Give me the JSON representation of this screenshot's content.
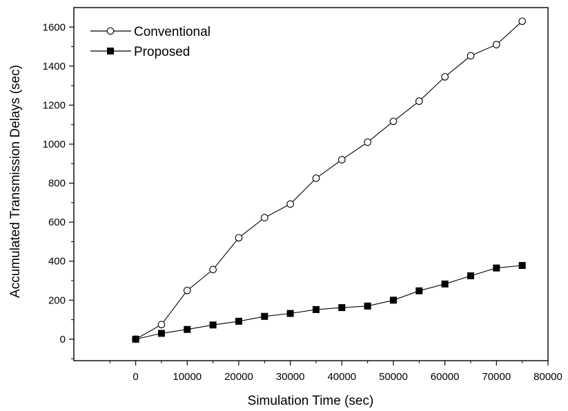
{
  "chart_data": {
    "type": "line",
    "title": "",
    "xlabel": "Simulation Time (sec)",
    "ylabel": "Accumulated Transmission Delays (sec)",
    "xlim": [
      -12000,
      80000
    ],
    "ylim": [
      -110,
      1700
    ],
    "xticks": [
      0,
      10000,
      20000,
      30000,
      40000,
      50000,
      60000,
      70000,
      80000
    ],
    "yticks": [
      0,
      200,
      400,
      600,
      800,
      1000,
      1200,
      1400,
      1600
    ],
    "x": [
      0,
      5000,
      10000,
      15000,
      20000,
      25000,
      30000,
      35000,
      40000,
      45000,
      50000,
      55000,
      60000,
      65000,
      70000,
      75000
    ],
    "series": [
      {
        "name": "Conventional",
        "marker": "open-circle",
        "values": [
          0,
          75,
          250,
          357,
          520,
          623,
          693,
          825,
          920,
          1010,
          1117,
          1220,
          1345,
          1453,
          1510,
          1630
        ]
      },
      {
        "name": "Proposed",
        "marker": "filled-square",
        "values": [
          0,
          30,
          50,
          73,
          92,
          117,
          132,
          152,
          162,
          170,
          200,
          248,
          283,
          325,
          365,
          378
        ]
      }
    ],
    "legend_position": "top-left",
    "grid": false,
    "colors": {
      "line": "#000000",
      "background": "#ffffff"
    }
  }
}
